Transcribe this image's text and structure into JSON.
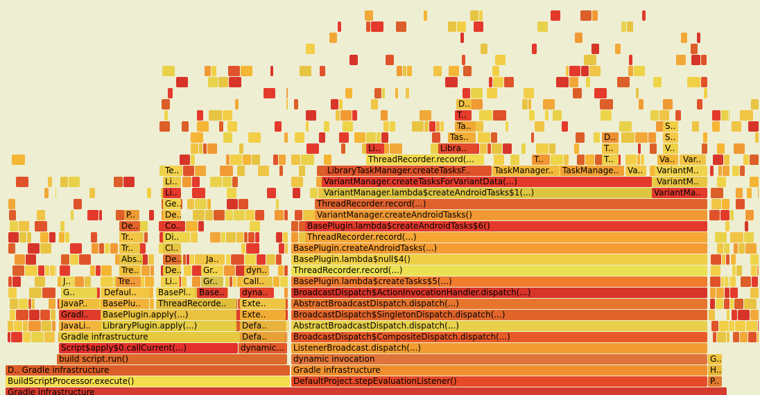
{
  "chart_data": {
    "type": "flame",
    "title": "",
    "units": "samples",
    "total": 1096,
    "frames": [
      {
        "label": "Gradle infrastructure",
        "depth": 0,
        "start": 8,
        "width": 1040,
        "color": "#d53a2e"
      },
      {
        "label": "BuildScriptProcessor.execute()",
        "depth": 1,
        "start": 8,
        "width": 410,
        "color": "#f4dd4d"
      },
      {
        "label": "DefaultProject.stepEvaluationListener()",
        "depth": 1,
        "start": 420,
        "width": 600,
        "color": "#e64a26"
      },
      {
        "label": "P..",
        "depth": 1,
        "start": 1021,
        "width": 20,
        "color": "#e07a2e"
      },
      {
        "label": "D.. Gradle infrastructure",
        "depth": 2,
        "start": 8,
        "width": 410,
        "color": "#dc5e28"
      },
      {
        "label": "Gradle infrastructure",
        "depth": 2,
        "start": 420,
        "width": 600,
        "color": "#f09030"
      },
      {
        "label": "H..",
        "depth": 2,
        "start": 1021,
        "width": 20,
        "color": "#e9b83a"
      },
      {
        "label": "build script.run()",
        "depth": 3,
        "start": 82,
        "width": 332,
        "color": "#dc6a2c"
      },
      {
        "label": "dynamic invocation",
        "depth": 3,
        "start": 420,
        "width": 600,
        "color": "#e0743a"
      },
      {
        "label": "G..",
        "depth": 3,
        "start": 1021,
        "width": 20,
        "color": "#efc340"
      },
      {
        "label": "Script$apply$0.callCurrent(...)",
        "depth": 4,
        "start": 85,
        "width": 258,
        "color": "#e2312c"
      },
      {
        "label": "dynamic...",
        "depth": 4,
        "start": 344,
        "width": 70,
        "color": "#e2582a"
      },
      {
        "label": "ListenerBroadcast.dispatch(...)",
        "depth": 4,
        "start": 420,
        "width": 600,
        "color": "#f29d32"
      },
      {
        "label": "Gradle infrastructure",
        "depth": 5,
        "start": 85,
        "width": 258,
        "color": "#e6c93e"
      },
      {
        "label": "Defa..",
        "depth": 5,
        "start": 346,
        "width": 66,
        "color": "#e8a136"
      },
      {
        "label": "BroadcastDispatch$CompositeDispatch.dispatch(...)",
        "depth": 5,
        "start": 420,
        "width": 600,
        "color": "#e85a28"
      },
      {
        "label": "JavaLi..",
        "depth": 6,
        "start": 85,
        "width": 58,
        "color": "#f4b53e"
      },
      {
        "label": "LibraryPlugin.apply(...)",
        "depth": 6,
        "start": 145,
        "width": 196,
        "color": "#e5cd45"
      },
      {
        "label": "Defa..",
        "depth": 6,
        "start": 346,
        "width": 66,
        "color": "#e7b33d"
      },
      {
        "label": "AbstractBroadcastDispatch.dispatch(...)",
        "depth": 6,
        "start": 420,
        "width": 600,
        "color": "#e8d14a"
      },
      {
        "label": "Gradl..",
        "depth": 7,
        "start": 85,
        "width": 58,
        "color": "#e03b2c"
      },
      {
        "label": "BasePlugin.apply(...)",
        "depth": 7,
        "start": 145,
        "width": 196,
        "color": "#e9c240"
      },
      {
        "label": "Exte..",
        "depth": 7,
        "start": 346,
        "width": 66,
        "color": "#f0ac34"
      },
      {
        "label": "BroadcastDispatch$SingletonDispatch.dispatch(...)",
        "depth": 7,
        "start": 420,
        "width": 600,
        "color": "#e1652a"
      },
      {
        "label": "JavaP..",
        "depth": 8,
        "start": 85,
        "width": 58,
        "color": "#f0be3c"
      },
      {
        "label": "BasePlu..",
        "depth": 8,
        "start": 145,
        "width": 70,
        "color": "#f2b43a"
      },
      {
        "label": "ThreadRecorde..",
        "depth": 8,
        "start": 225,
        "width": 116,
        "color": "#e1bd3c"
      },
      {
        "label": "Exte..",
        "depth": 8,
        "start": 346,
        "width": 66,
        "color": "#eec545"
      },
      {
        "label": "AbstractBroadcastDispatch.dispatch(...)",
        "depth": 8,
        "start": 420,
        "width": 600,
        "color": "#e7752e"
      },
      {
        "label": "G..",
        "depth": 9,
        "start": 88,
        "width": 52,
        "color": "#ead44b"
      },
      {
        "label": "Defaul..",
        "depth": 9,
        "start": 147,
        "width": 68,
        "color": "#f3c644"
      },
      {
        "label": "BasePl..",
        "depth": 9,
        "start": 225,
        "width": 55,
        "color": "#f0d24a"
      },
      {
        "label": "Base..",
        "depth": 9,
        "start": 284,
        "width": 44,
        "color": "#dd3b2c"
      },
      {
        "label": "dyna..",
        "depth": 9,
        "start": 346,
        "width": 46,
        "color": "#e3402b"
      },
      {
        "label": "BroadcastDispatch$ActionInvocationHandler.dispatch(...)",
        "depth": 9,
        "start": 420,
        "width": 600,
        "color": "#d8352a"
      },
      {
        "label": "J..",
        "depth": 10,
        "start": 88,
        "width": 20,
        "color": "#eed75a"
      },
      {
        "label": "Tre..",
        "depth": 10,
        "start": 167,
        "width": 36,
        "color": "#ee9a38"
      },
      {
        "label": "Li..",
        "depth": 10,
        "start": 235,
        "width": 24,
        "color": "#f0d24a"
      },
      {
        "label": "Gr..",
        "depth": 10,
        "start": 290,
        "width": 32,
        "color": "#d7c24a"
      },
      {
        "label": "Call..",
        "depth": 10,
        "start": 348,
        "width": 36,
        "color": "#f2c042"
      },
      {
        "label": "BasePlugin.lambda$createTasks$5(...)",
        "depth": 10,
        "start": 420,
        "width": 600,
        "color": "#f07c2e"
      },
      {
        "label": "Tre..",
        "depth": 11,
        "start": 172,
        "width": 30,
        "color": "#f0be3a"
      },
      {
        "label": "De..",
        "depth": 11,
        "start": 235,
        "width": 26,
        "color": "#e9c73e"
      },
      {
        "label": "Gr..",
        "depth": 11,
        "start": 290,
        "width": 32,
        "color": "#f2d24a"
      },
      {
        "label": "dyn..",
        "depth": 11,
        "start": 352,
        "width": 36,
        "color": "#eeb83c"
      },
      {
        "label": "ThreadRecorder.record(...)",
        "depth": 11,
        "start": 420,
        "width": 600,
        "color": "#ece152"
      },
      {
        "label": "Abs..",
        "depth": 12,
        "start": 172,
        "width": 34,
        "color": "#e7c540"
      },
      {
        "label": "De..",
        "depth": 12,
        "start": 235,
        "width": 26,
        "color": "#e4702e"
      },
      {
        "label": "Ja..",
        "depth": 12,
        "start": 294,
        "width": 30,
        "color": "#f2c642"
      },
      {
        "label": "BasePlugin.lambda$null$4()",
        "depth": 12,
        "start": 420,
        "width": 600,
        "color": "#efcf46"
      },
      {
        "label": "Tr..",
        "depth": 13,
        "start": 172,
        "width": 30,
        "color": "#ecc542"
      },
      {
        "label": "Cl..",
        "depth": 13,
        "start": 235,
        "width": 26,
        "color": "#e8c443"
      },
      {
        "label": "BasePlugin.createAndroidTasks(...)",
        "depth": 13,
        "start": 420,
        "width": 600,
        "color": "#f49c32"
      },
      {
        "label": "Tr..",
        "depth": 14,
        "start": 172,
        "width": 30,
        "color": "#f3c444"
      },
      {
        "label": "Di..",
        "depth": 14,
        "start": 235,
        "width": 26,
        "color": "#eed449"
      },
      {
        "label": "ThreadRecorder.record(...)",
        "depth": 14,
        "start": 440,
        "width": 580,
        "color": "#f5a634"
      },
      {
        "label": "De..",
        "depth": 15,
        "start": 172,
        "width": 30,
        "color": "#e4632b"
      },
      {
        "label": "Co..",
        "depth": 15,
        "start": 235,
        "width": 26,
        "color": "#e33a2c"
      },
      {
        "label": "BasePlugin.lambda$createAndroidTasks$6()",
        "depth": 15,
        "start": 440,
        "width": 580,
        "color": "#e33a2c"
      },
      {
        "label": "P..",
        "depth": 16,
        "start": 179,
        "width": 22,
        "color": "#ed9a36"
      },
      {
        "label": "De..",
        "depth": 16,
        "start": 235,
        "width": 26,
        "color": "#f2bd3e"
      },
      {
        "label": "VariantManager.createAndroidTasks()",
        "depth": 16,
        "start": 454,
        "width": 566,
        "color": "#f19a34"
      },
      {
        "label": "Ge..",
        "depth": 17,
        "start": 235,
        "width": 26,
        "color": "#f0d24a"
      },
      {
        "label": "ThreadRecorder.record(...)",
        "depth": 17,
        "start": 454,
        "width": 566,
        "color": "#e0632e"
      },
      {
        "label": "Li..",
        "depth": 18,
        "start": 235,
        "width": 26,
        "color": "#e33a2c"
      },
      {
        "label": "VariantManager.lambda$createAndroidTasks$1(...)",
        "depth": 18,
        "start": 464,
        "width": 476,
        "color": "#dcc641"
      },
      {
        "label": "VariantMa..",
        "depth": 18,
        "start": 940,
        "width": 80,
        "color": "#e33a2c"
      },
      {
        "label": "Li..",
        "depth": 19,
        "start": 235,
        "width": 26,
        "color": "#eecb44"
      },
      {
        "label": "VariantManager.createTasksForVariantData(...)",
        "depth": 19,
        "start": 464,
        "width": 476,
        "color": "#e33a2c"
      },
      {
        "label": "VariantM..",
        "depth": 19,
        "start": 944,
        "width": 76,
        "color": "#e9c440"
      },
      {
        "label": "Te..",
        "depth": 20,
        "start": 235,
        "width": 26,
        "color": "#f3d24a"
      },
      {
        "label": "LibraryTaskManager.createTasksF..",
        "depth": 20,
        "start": 469,
        "width": 240,
        "color": "#e0532a"
      },
      {
        "label": "TaskManager..",
        "depth": 20,
        "start": 710,
        "width": 96,
        "color": "#f3b93a"
      },
      {
        "label": "TaskManage..",
        "depth": 20,
        "start": 808,
        "width": 92,
        "color": "#f1a034"
      },
      {
        "label": "Va..",
        "depth": 20,
        "start": 902,
        "width": 30,
        "color": "#f1c945"
      },
      {
        "label": "VariantM..",
        "depth": 20,
        "start": 944,
        "width": 76,
        "color": "#f0d34c"
      },
      {
        "label": "ThreadRecorder.record(...",
        "depth": 21,
        "start": 528,
        "width": 170,
        "color": "#f2d84c"
      },
      {
        "label": "T..",
        "depth": 21,
        "start": 767,
        "width": 26,
        "color": "#f19632"
      },
      {
        "label": "T..",
        "depth": 21,
        "start": 868,
        "width": 24,
        "color": "#eed148"
      },
      {
        "label": "Va..",
        "depth": 21,
        "start": 948,
        "width": 30,
        "color": "#f5b535"
      },
      {
        "label": "Var..",
        "depth": 21,
        "start": 982,
        "width": 36,
        "color": "#f0c444"
      },
      {
        "label": "Li..",
        "depth": 22,
        "start": 528,
        "width": 26,
        "color": "#e33a2c"
      },
      {
        "label": "Libra..",
        "depth": 22,
        "start": 632,
        "width": 56,
        "color": "#e24a2e"
      },
      {
        "label": "T..",
        "depth": 22,
        "start": 868,
        "width": 24,
        "color": "#f2c444"
      },
      {
        "label": "V..",
        "depth": 22,
        "start": 956,
        "width": 22,
        "color": "#efd047"
      },
      {
        "label": "Tas..",
        "depth": 23,
        "start": 646,
        "width": 40,
        "color": "#f1ad36"
      },
      {
        "label": "D..",
        "depth": 23,
        "start": 868,
        "width": 24,
        "color": "#ec9034"
      },
      {
        "label": "S..",
        "depth": 23,
        "start": 956,
        "width": 22,
        "color": "#f5c845"
      },
      {
        "label": "Ta..",
        "depth": 24,
        "start": 656,
        "width": 30,
        "color": "#f0a734"
      },
      {
        "label": "S..",
        "depth": 24,
        "start": 956,
        "width": 22,
        "color": "#f3cf48"
      },
      {
        "label": "T..",
        "depth": 25,
        "start": 656,
        "width": 24,
        "color": "#e53c2c"
      },
      {
        "label": "D..",
        "depth": 26,
        "start": 658,
        "width": 22,
        "color": "#f1c142"
      }
    ]
  }
}
